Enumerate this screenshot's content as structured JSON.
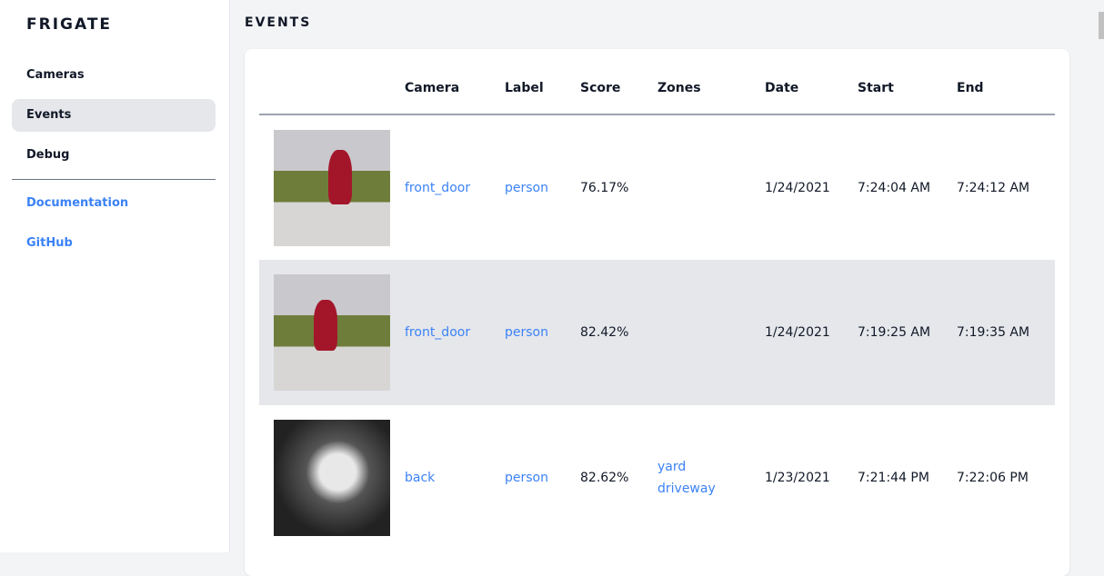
{
  "sidebar": {
    "brand": "FRIGATE",
    "items": [
      {
        "label": "Cameras"
      },
      {
        "label": "Events"
      },
      {
        "label": "Debug"
      }
    ],
    "links": [
      {
        "label": "Documentation"
      },
      {
        "label": "GitHub"
      }
    ]
  },
  "page": {
    "title": "EVENTS"
  },
  "table": {
    "headers": [
      "",
      "Camera",
      "Label",
      "Score",
      "Zones",
      "Date",
      "Start",
      "End"
    ],
    "rows": [
      {
        "camera": "front_door",
        "label": "person",
        "score": "76.17%",
        "zones": [
          "",
          ""
        ],
        "date": "1/24/2021",
        "start": "7:24:04 AM",
        "end": "7:24:12 AM"
      },
      {
        "camera": "front_door",
        "label": "person",
        "score": "82.42%",
        "zones": [
          "",
          ""
        ],
        "date": "1/24/2021",
        "start": "7:19:25 AM",
        "end": "7:19:35 AM"
      },
      {
        "camera": "back",
        "label": "person",
        "score": "82.62%",
        "zones": [
          "yard",
          "driveway"
        ],
        "date": "1/23/2021",
        "start": "7:21:44 PM",
        "end": "7:22:06 PM"
      }
    ]
  },
  "colors": {
    "link": "#3b82f6",
    "active_bg": "#e5e7eb"
  }
}
